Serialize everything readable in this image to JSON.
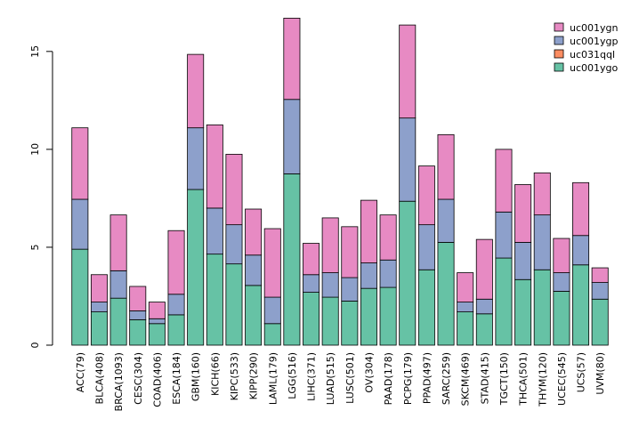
{
  "chart_data": {
    "type": "bar",
    "stacked": true,
    "title": "",
    "xlabel": "",
    "ylabel": "",
    "ylim": [
      0,
      16.9
    ],
    "yticks": [
      0,
      5,
      10,
      15
    ],
    "legend_position": "top-right",
    "categories": [
      "ACC(79)",
      "BLCA(408)",
      "BRCA(1093)",
      "CESC(304)",
      "COAD(406)",
      "ESCA(184)",
      "GBM(160)",
      "KICH(66)",
      "KIPC(533)",
      "KIPP(290)",
      "LAML(179)",
      "LGG(516)",
      "LIHC(371)",
      "LUAD(515)",
      "LUSC(501)",
      "OV(304)",
      "PAAD(178)",
      "PCPG(179)",
      "PPAD(497)",
      "SARC(259)",
      "SKCM(469)",
      "STAD(415)",
      "TGCT(150)",
      "THCA(501)",
      "THYM(120)",
      "UCEC(545)",
      "UCS(57)",
      "UVM(80)"
    ],
    "series": [
      {
        "name": "uc001ygo",
        "color": "#66c2a5",
        "values": [
          4.9,
          1.7,
          2.4,
          1.3,
          1.1,
          1.55,
          7.95,
          4.65,
          4.15,
          3.05,
          1.1,
          8.75,
          2.7,
          2.45,
          2.25,
          2.9,
          2.95,
          7.35,
          3.85,
          5.25,
          1.7,
          1.6,
          4.45,
          3.35,
          3.85,
          2.75,
          4.1,
          2.35
        ]
      },
      {
        "name": "uc031qql",
        "color": "#fc8d62",
        "values": [
          0,
          0,
          0,
          0,
          0,
          0,
          0,
          0,
          0,
          0,
          0,
          0,
          0,
          0,
          0,
          0,
          0,
          0,
          0,
          0,
          0,
          0,
          0,
          0,
          0,
          0,
          0,
          0
        ]
      },
      {
        "name": "uc001ygp",
        "color": "#8da0cb",
        "values": [
          2.55,
          0.5,
          1.4,
          0.45,
          0.25,
          1.05,
          3.15,
          2.35,
          2.0,
          1.55,
          1.35,
          3.8,
          0.9,
          1.25,
          1.2,
          1.3,
          1.4,
          4.25,
          2.3,
          2.2,
          0.5,
          0.75,
          2.35,
          1.9,
          2.8,
          0.95,
          1.5,
          0.85
        ]
      },
      {
        "name": "uc001ygn",
        "color": "#e78ac3",
        "values": [
          3.65,
          1.4,
          2.85,
          1.25,
          0.85,
          3.25,
          3.75,
          4.25,
          3.6,
          2.35,
          3.5,
          4.15,
          1.6,
          2.8,
          2.6,
          3.2,
          2.3,
          4.75,
          3.0,
          3.3,
          1.5,
          3.05,
          3.2,
          2.95,
          2.15,
          1.75,
          2.7,
          0.75
        ]
      }
    ],
    "colors": {
      "border": "#000000",
      "axis": "#000000"
    }
  }
}
